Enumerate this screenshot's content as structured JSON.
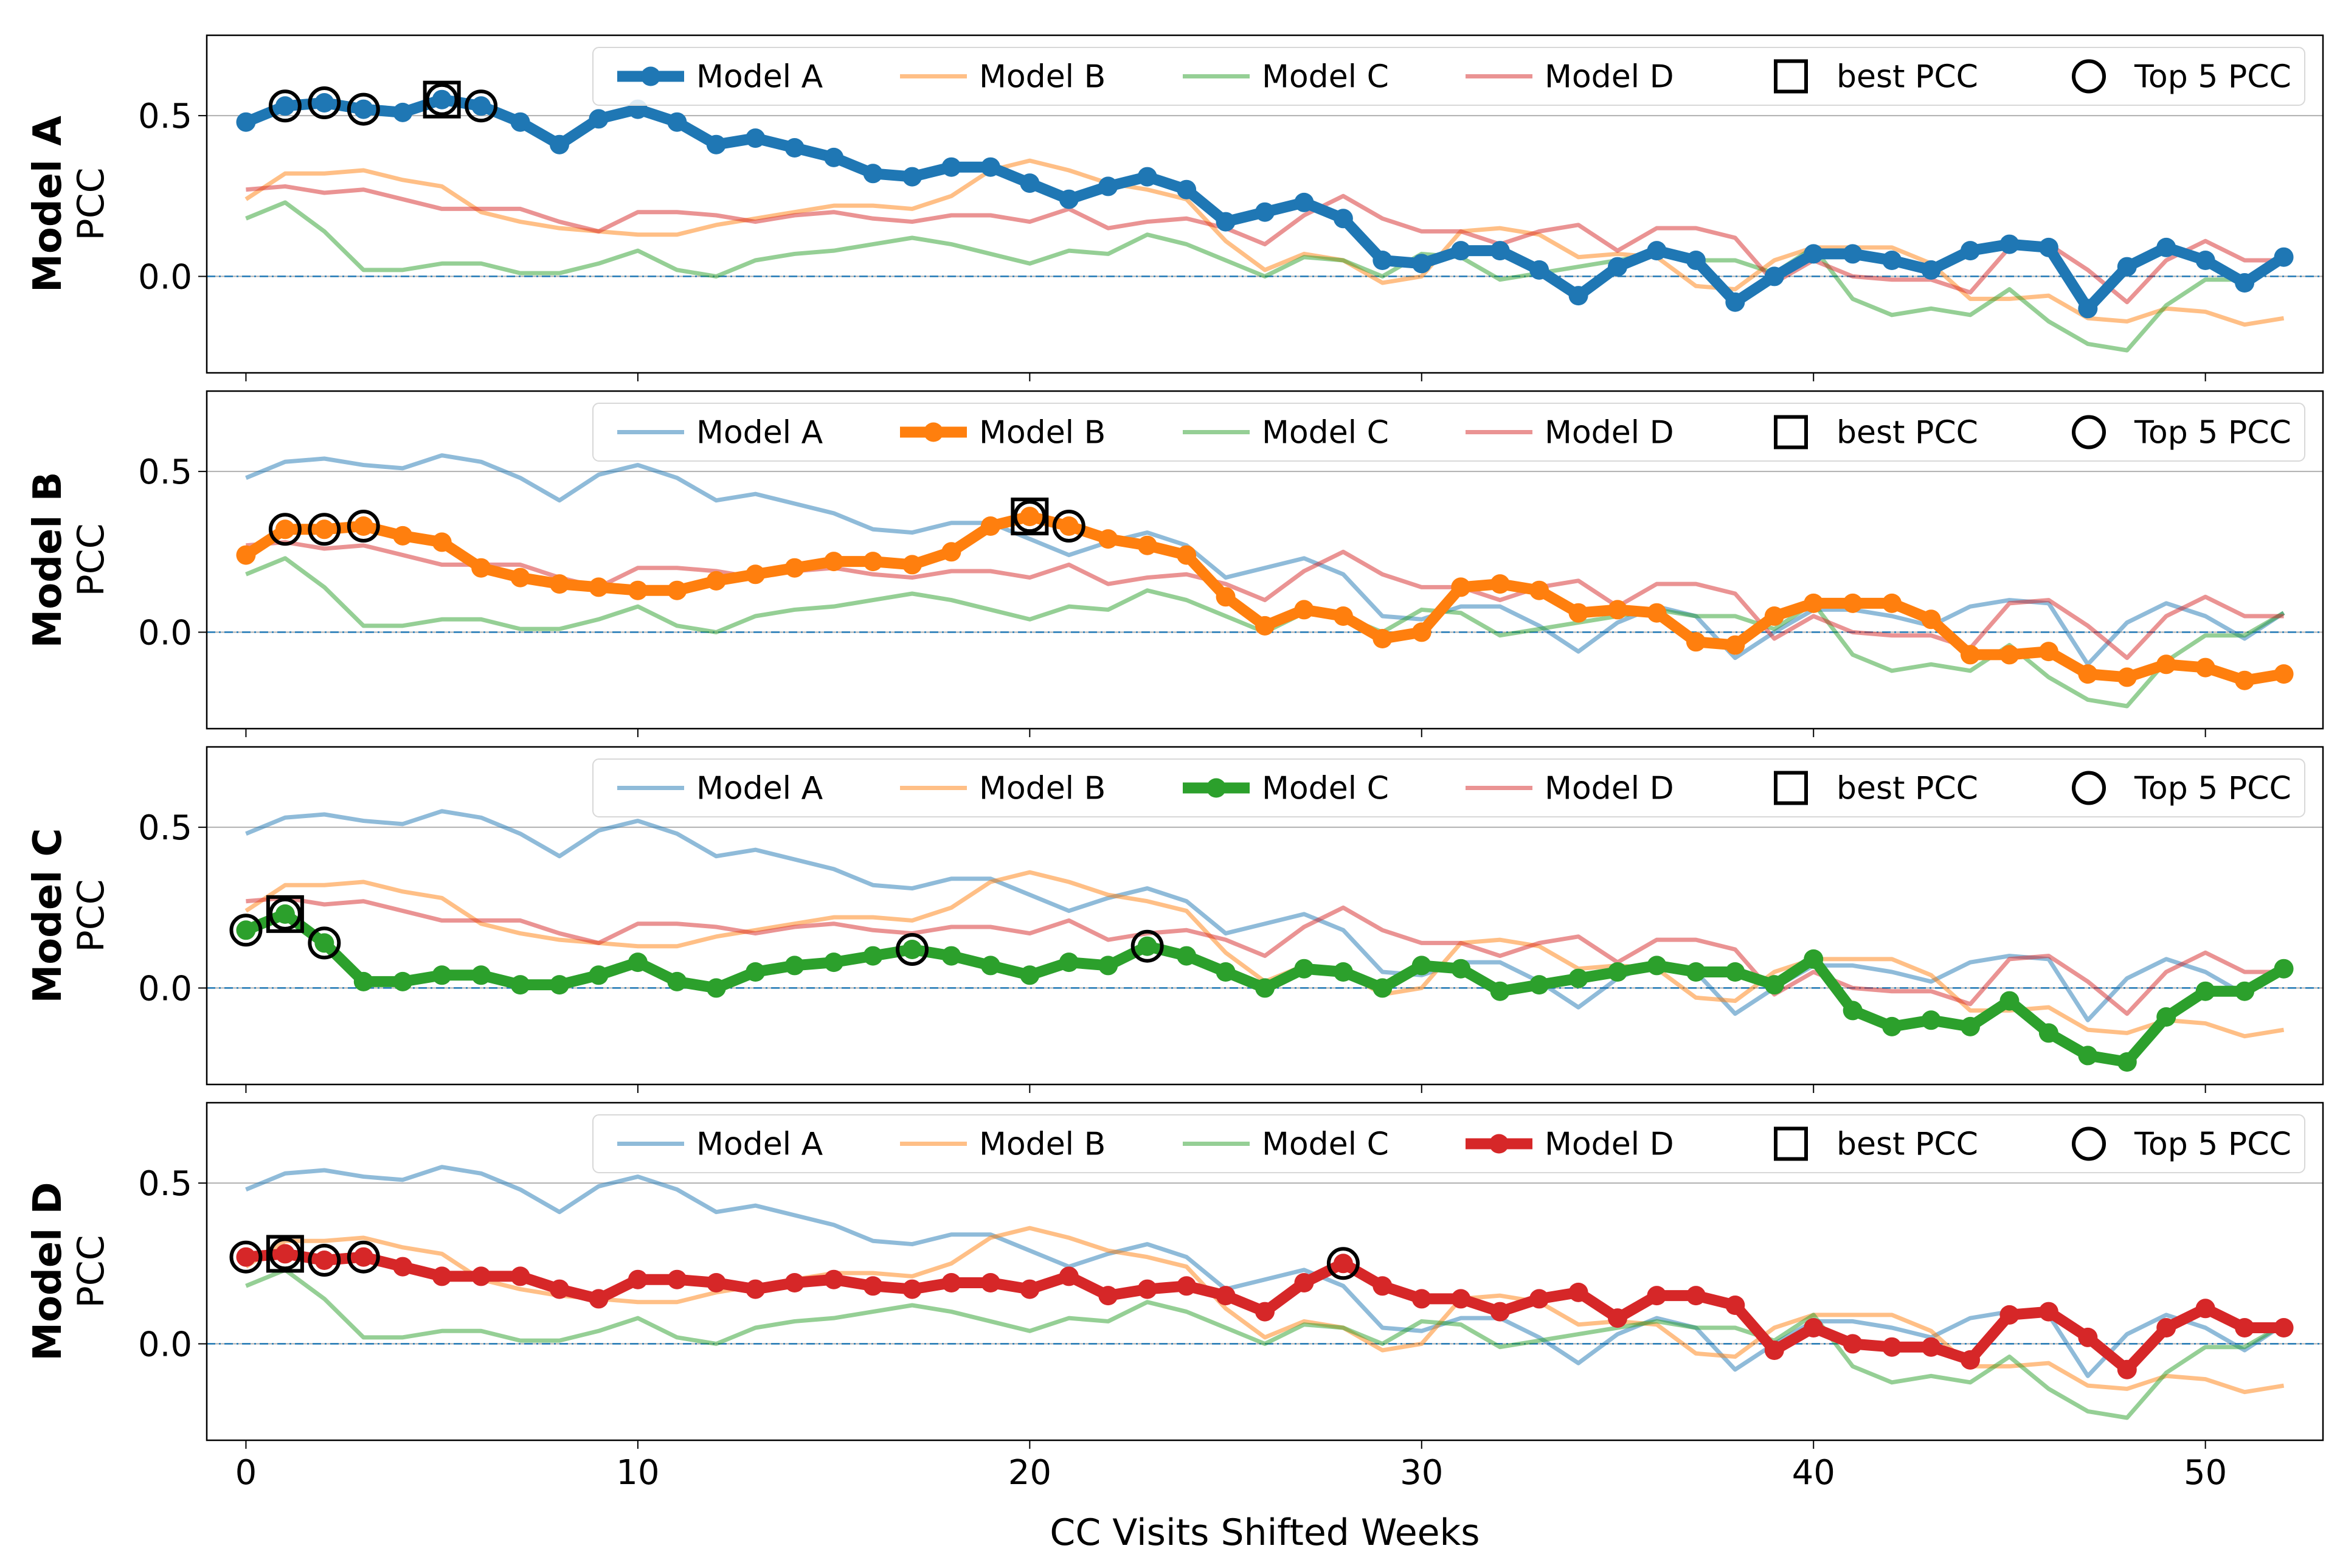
{
  "chart_data": {
    "type": "line",
    "xlabel": "CC Visits Shifted Weeks",
    "ylabel": "PCC",
    "xlim": [
      -1,
      53
    ],
    "ylim": [
      -0.3,
      0.75
    ],
    "xticks": [
      "0",
      "10",
      "20",
      "30",
      "40",
      "50"
    ],
    "yticks": [
      "0.0",
      "0.5"
    ],
    "colors": {
      "Model A": "#1f77b4",
      "Model B": "#ff7f0e",
      "Model C": "#2ca02c",
      "Model D": "#d62728",
      "zero_line": "#1f77b4",
      "grid": "#b0b0b0"
    },
    "legend": {
      "position": "top-right",
      "markers": [
        "best PCC",
        "Top 5 PCC"
      ]
    },
    "series": [
      {
        "name": "Model A",
        "values": [
          0.48,
          0.53,
          0.54,
          0.52,
          0.51,
          0.55,
          0.53,
          0.48,
          0.41,
          0.49,
          0.52,
          0.48,
          0.41,
          0.43,
          0.4,
          0.37,
          0.32,
          0.31,
          0.34,
          0.34,
          0.29,
          0.24,
          0.28,
          0.31,
          0.27,
          0.17,
          0.2,
          0.23,
          0.18,
          0.05,
          0.04,
          0.08,
          0.08,
          0.02,
          -0.06,
          0.03,
          0.08,
          0.05,
          -0.08,
          0.0,
          0.07,
          0.07,
          0.05,
          0.02,
          0.08,
          0.1,
          0.09,
          -0.1,
          0.03,
          0.09,
          0.05,
          -0.02,
          0.06
        ]
      },
      {
        "name": "Model B",
        "values": [
          0.24,
          0.32,
          0.32,
          0.33,
          0.3,
          0.28,
          0.2,
          0.17,
          0.15,
          0.14,
          0.13,
          0.13,
          0.16,
          0.18,
          0.2,
          0.22,
          0.22,
          0.21,
          0.25,
          0.33,
          0.36,
          0.33,
          0.29,
          0.27,
          0.24,
          0.11,
          0.02,
          0.07,
          0.05,
          -0.02,
          0.0,
          0.14,
          0.15,
          0.13,
          0.06,
          0.07,
          0.06,
          -0.03,
          -0.04,
          0.05,
          0.09,
          0.09,
          0.09,
          0.04,
          -0.07,
          -0.07,
          -0.06,
          -0.13,
          -0.14,
          -0.1,
          -0.11,
          -0.15,
          -0.13
        ]
      },
      {
        "name": "Model C",
        "values": [
          0.18,
          0.23,
          0.14,
          0.02,
          0.02,
          0.04,
          0.04,
          0.01,
          0.01,
          0.04,
          0.08,
          0.02,
          0.0,
          0.05,
          0.07,
          0.08,
          0.1,
          0.12,
          0.1,
          0.07,
          0.04,
          0.08,
          0.07,
          0.13,
          0.1,
          0.05,
          0.0,
          0.06,
          0.05,
          0.0,
          0.07,
          0.06,
          -0.01,
          0.01,
          0.03,
          0.05,
          0.07,
          0.05,
          0.05,
          0.01,
          0.09,
          -0.07,
          -0.12,
          -0.1,
          -0.12,
          -0.04,
          -0.14,
          -0.21,
          -0.23,
          -0.09,
          -0.01,
          -0.01,
          0.06
        ]
      },
      {
        "name": "Model D",
        "values": [
          0.27,
          0.28,
          0.26,
          0.27,
          0.24,
          0.21,
          0.21,
          0.21,
          0.17,
          0.14,
          0.2,
          0.2,
          0.19,
          0.17,
          0.19,
          0.2,
          0.18,
          0.17,
          0.19,
          0.19,
          0.17,
          0.21,
          0.15,
          0.17,
          0.18,
          0.15,
          0.1,
          0.19,
          0.25,
          0.18,
          0.14,
          0.14,
          0.1,
          0.14,
          0.16,
          0.08,
          0.15,
          0.15,
          0.12,
          -0.02,
          0.05,
          0.0,
          -0.01,
          -0.01,
          -0.05,
          0.09,
          0.1,
          0.02,
          -0.08,
          0.05,
          0.11,
          0.05,
          0.05
        ]
      }
    ],
    "subplots": [
      {
        "title": "Model A",
        "highlight": "Model A",
        "best_week": 5,
        "top5_weeks": [
          1,
          2,
          3,
          5,
          6
        ]
      },
      {
        "title": "Model B",
        "highlight": "Model B",
        "best_week": 20,
        "top5_weeks": [
          1,
          2,
          3,
          20,
          21
        ]
      },
      {
        "title": "Model C",
        "highlight": "Model C",
        "best_week": 1,
        "top5_weeks": [
          0,
          1,
          2,
          17,
          23
        ]
      },
      {
        "title": "Model D",
        "highlight": "Model D",
        "best_week": 1,
        "top5_weeks": [
          0,
          1,
          2,
          3,
          28
        ]
      }
    ]
  }
}
